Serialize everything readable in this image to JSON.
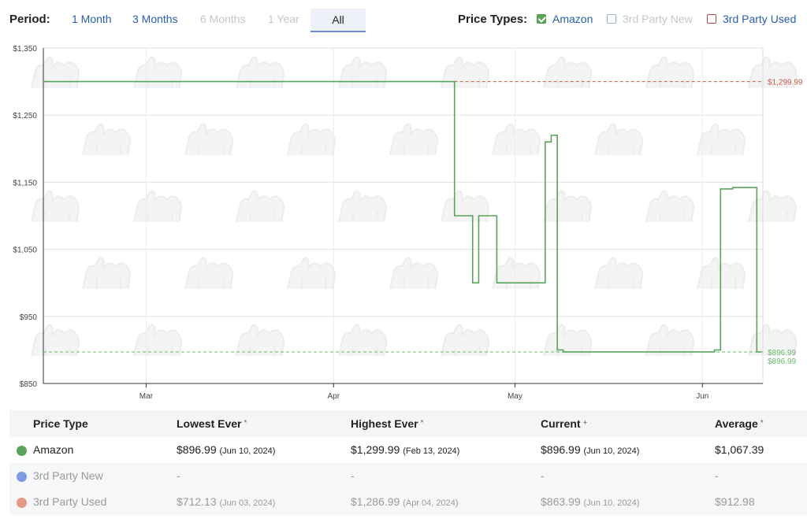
{
  "period": {
    "label": "Period:",
    "options": [
      "1 Month",
      "3 Months",
      "6 Months",
      "1 Year",
      "All"
    ],
    "selected": "All"
  },
  "price_types": {
    "label": "Price Types:",
    "items": [
      {
        "label": "Amazon",
        "checked": true,
        "color": "#59a55a"
      },
      {
        "label": "3rd Party New",
        "checked": false,
        "color": "#9bb0d8"
      },
      {
        "label": "3rd Party Used",
        "checked": false,
        "color": "#b04a3e"
      }
    ]
  },
  "chart_data": {
    "type": "line",
    "y_ticks": [
      "$1,350",
      "$1,250",
      "$1,150",
      "$1,050",
      "$950",
      "$850"
    ],
    "y_tick_values": [
      1350,
      1250,
      1150,
      1050,
      950,
      850
    ],
    "ylim": [
      850,
      1350
    ],
    "x_ticks": [
      "Mar",
      "Apr",
      "May",
      "Jun"
    ],
    "x_tick_dates": [
      "2024-03-01",
      "2024-04-01",
      "2024-05-01",
      "2024-06-01"
    ],
    "xlim": [
      "2024-02-13",
      "2024-06-11"
    ],
    "grid": true,
    "series": [
      {
        "name": "Amazon",
        "color": "#59a55a",
        "step": true,
        "points": [
          [
            "2024-02-13",
            1299.99
          ],
          [
            "2024-04-21",
            1099.99
          ],
          [
            "2024-04-24",
            999.99
          ],
          [
            "2024-04-25",
            1099.99
          ],
          [
            "2024-04-28",
            999.99
          ],
          [
            "2024-05-06",
            1210.0
          ],
          [
            "2024-05-07",
            1220.0
          ],
          [
            "2024-05-08",
            899.99
          ],
          [
            "2024-05-09",
            896.99
          ],
          [
            "2024-06-03",
            899.99
          ],
          [
            "2024-06-04",
            1140.0
          ],
          [
            "2024-06-06",
            1142.0
          ],
          [
            "2024-06-10",
            896.99
          ]
        ]
      }
    ],
    "reference_lines": [
      {
        "value": 1299.99,
        "label": "$1,299.99",
        "color": "#c65a4c",
        "start": "2024-04-21"
      },
      {
        "value": 896.99,
        "label": "$896.99",
        "color": "#6bb86b",
        "start": "2024-02-13"
      }
    ],
    "extra_labels": [
      {
        "value": 896.99,
        "label": "$896.99",
        "color": "#6bb86b"
      }
    ]
  },
  "table": {
    "headers": [
      "Price Type",
      "Lowest Ever",
      "Highest Ever",
      "Current",
      "Average"
    ],
    "header_marks": [
      "",
      "*",
      "*",
      "+",
      "*"
    ],
    "rows": [
      {
        "name": "Amazon",
        "dot_color": "#59a55a",
        "lowest": "$896.99",
        "lowest_date": "(Jun 10, 2024)",
        "highest": "$1,299.99",
        "highest_date": "(Feb 13, 2024)",
        "current": "$896.99",
        "current_date": "(Jun 10, 2024)",
        "average": "$1,067.39"
      },
      {
        "name": "3rd Party New",
        "dot_color": "#7d9be0",
        "lowest": "-",
        "lowest_date": "",
        "highest": "-",
        "highest_date": "",
        "current": "-",
        "current_date": "",
        "average": "-"
      },
      {
        "name": "3rd Party Used",
        "dot_color": "#e59a85",
        "lowest": "$712.13",
        "lowest_date": "(Jun 03, 2024)",
        "highest": "$1,286.99",
        "highest_date": "(Apr 04, 2024)",
        "current": "$863.99",
        "current_date": "(Jun 10, 2024)",
        "average": "$912.98"
      }
    ]
  }
}
